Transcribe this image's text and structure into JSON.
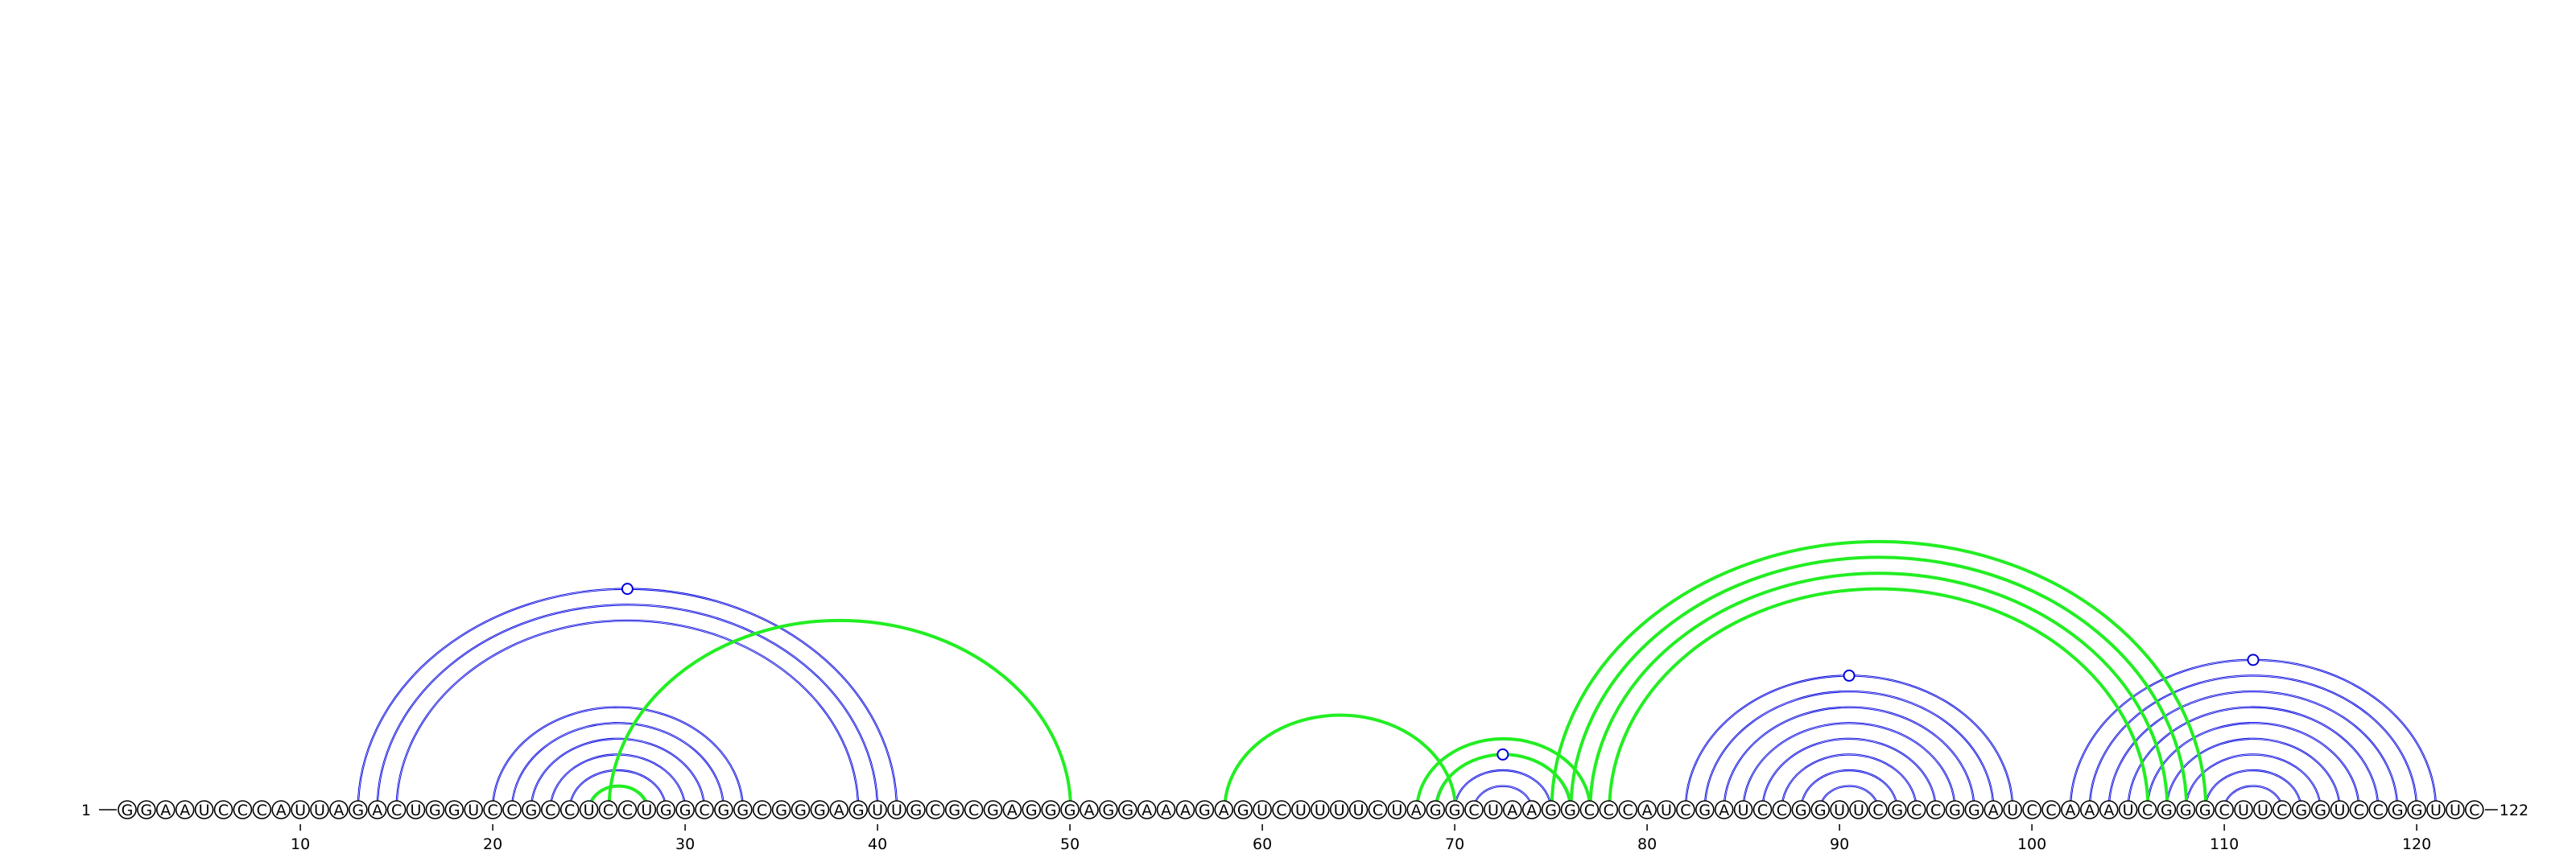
{
  "diagram": {
    "sequence": "GGAAUCCCAUUAGACUGGUCCGCCUCCUGGCGGCGGGAGUUGCGCGAGGGAGGAAAGAGUCUUUUCUAGGCUAAGGCCCAUCGAUCCGGUUCGCCGGAUCCAAAUCGGGCUUCGGUCCGGUUC",
    "start_label": "1",
    "end_label": "122",
    "ticks": [
      "10",
      "20",
      "30",
      "40",
      "50",
      "60",
      "70",
      "80",
      "90",
      "100",
      "110",
      "120"
    ],
    "colors": {
      "primary": "#0000dd",
      "secondary": "#22ee22",
      "nucleotide_stroke": "#000000"
    },
    "arcs": [
      {
        "i": 13,
        "j": 41,
        "group": "primary"
      },
      {
        "i": 14,
        "j": 40,
        "group": "primary"
      },
      {
        "i": 15,
        "j": 39,
        "group": "primary"
      },
      {
        "i": 20,
        "j": 33,
        "group": "primary"
      },
      {
        "i": 21,
        "j": 32,
        "group": "primary"
      },
      {
        "i": 22,
        "j": 31,
        "group": "primary"
      },
      {
        "i": 23,
        "j": 30,
        "group": "primary"
      },
      {
        "i": 24,
        "j": 29,
        "group": "primary"
      },
      {
        "i": 25,
        "j": 28,
        "group": "primary"
      },
      {
        "i": 69,
        "j": 76,
        "group": "primary"
      },
      {
        "i": 70,
        "j": 75,
        "group": "primary"
      },
      {
        "i": 71,
        "j": 74,
        "group": "primary"
      },
      {
        "i": 82,
        "j": 99,
        "group": "primary"
      },
      {
        "i": 83,
        "j": 98,
        "group": "primary"
      },
      {
        "i": 84,
        "j": 97,
        "group": "primary"
      },
      {
        "i": 85,
        "j": 96,
        "group": "primary"
      },
      {
        "i": 86,
        "j": 95,
        "group": "primary"
      },
      {
        "i": 87,
        "j": 94,
        "group": "primary"
      },
      {
        "i": 88,
        "j": 93,
        "group": "primary"
      },
      {
        "i": 89,
        "j": 92,
        "group": "primary"
      },
      {
        "i": 102,
        "j": 121,
        "group": "primary"
      },
      {
        "i": 103,
        "j": 120,
        "group": "primary"
      },
      {
        "i": 104,
        "j": 119,
        "group": "primary"
      },
      {
        "i": 105,
        "j": 118,
        "group": "primary"
      },
      {
        "i": 106,
        "j": 117,
        "group": "primary"
      },
      {
        "i": 107,
        "j": 116,
        "group": "primary"
      },
      {
        "i": 108,
        "j": 115,
        "group": "primary"
      },
      {
        "i": 109,
        "j": 114,
        "group": "primary"
      },
      {
        "i": 110,
        "j": 113,
        "group": "primary"
      },
      {
        "i": 26,
        "j": 50,
        "group": "secondary"
      },
      {
        "i": 25,
        "j": 28,
        "group": "secondary"
      },
      {
        "i": 58,
        "j": 70,
        "group": "secondary"
      },
      {
        "i": 68,
        "j": 77,
        "group": "secondary"
      },
      {
        "i": 69,
        "j": 76,
        "group": "secondary"
      },
      {
        "i": 75,
        "j": 109,
        "group": "secondary"
      },
      {
        "i": 76,
        "j": 108,
        "group": "secondary"
      },
      {
        "i": 77,
        "j": 107,
        "group": "secondary"
      },
      {
        "i": 78,
        "j": 106,
        "group": "secondary"
      }
    ],
    "markers": [
      {
        "between": [
          27,
          28
        ],
        "group": "primary"
      },
      {
        "between": [
          72,
          73
        ],
        "group": "primary"
      },
      {
        "between": [
          90,
          91
        ],
        "group": "primary"
      },
      {
        "between": [
          111,
          112
        ],
        "group": "primary"
      }
    ]
  }
}
